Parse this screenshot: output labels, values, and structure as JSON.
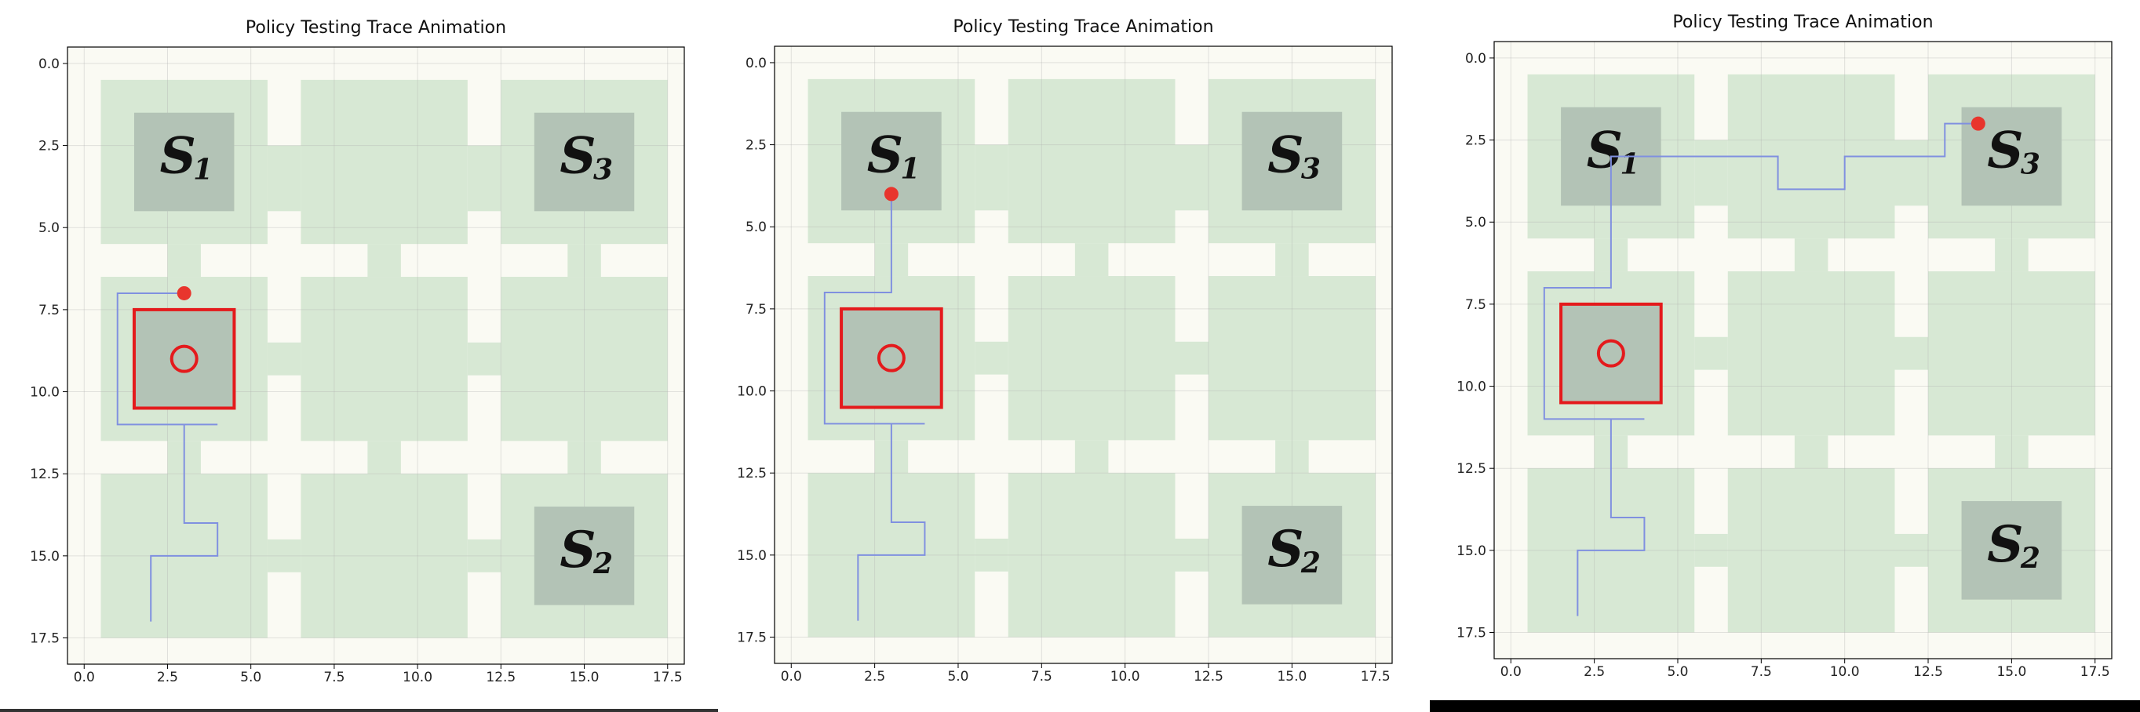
{
  "chart_data": [
    {
      "type": "line",
      "title": "Policy Testing Trace Animation",
      "xlabel": "",
      "ylabel": "",
      "xlim": [
        -0.5,
        18.0
      ],
      "ylim": [
        18.3,
        -0.5
      ],
      "y_inverted": true,
      "grid": true,
      "xticks": [
        0.0,
        2.5,
        5.0,
        7.5,
        10.0,
        12.5,
        15.0,
        17.5
      ],
      "yticks": [
        0.0,
        2.5,
        5.0,
        7.5,
        10.0,
        12.5,
        15.0,
        17.5
      ],
      "tick_labels": [
        "0.0",
        "2.5",
        "5.0",
        "7.5",
        "10.0",
        "12.5",
        "15.0",
        "17.5"
      ],
      "regions": [
        {
          "label": "S1",
          "x": [
            1.5,
            4.5
          ],
          "y": [
            1.5,
            4.5
          ]
        },
        {
          "label": "S3",
          "x": [
            13.5,
            16.5
          ],
          "y": [
            1.5,
            4.5
          ]
        },
        {
          "label": "S2",
          "x": [
            13.5,
            16.5
          ],
          "y": [
            13.5,
            16.5
          ]
        },
        {
          "label": "O",
          "x": [
            1.5,
            4.5
          ],
          "y": [
            7.5,
            10.5
          ],
          "highlighted": true
        }
      ],
      "series": [
        {
          "x": [
            2,
            2,
            4,
            4,
            3,
            3,
            4,
            1,
            1,
            3
          ],
          "y": [
            17,
            15,
            15,
            14,
            14,
            11,
            11,
            11,
            7,
            7
          ]
        }
      ],
      "agent_position": {
        "x": 3,
        "y": 7
      }
    },
    {
      "type": "line",
      "title": "Policy Testing Trace Animation",
      "xlabel": "",
      "ylabel": "",
      "xlim": [
        -0.5,
        18.0
      ],
      "ylim": [
        18.3,
        -0.5
      ],
      "y_inverted": true,
      "grid": true,
      "xticks": [
        0.0,
        2.5,
        5.0,
        7.5,
        10.0,
        12.5,
        15.0,
        17.5
      ],
      "yticks": [
        0.0,
        2.5,
        5.0,
        7.5,
        10.0,
        12.5,
        15.0,
        17.5
      ],
      "tick_labels": [
        "0.0",
        "2.5",
        "5.0",
        "7.5",
        "10.0",
        "12.5",
        "15.0",
        "17.5"
      ],
      "regions": [
        {
          "label": "S1",
          "x": [
            1.5,
            4.5
          ],
          "y": [
            1.5,
            4.5
          ]
        },
        {
          "label": "S3",
          "x": [
            13.5,
            16.5
          ],
          "y": [
            1.5,
            4.5
          ]
        },
        {
          "label": "S2",
          "x": [
            13.5,
            16.5
          ],
          "y": [
            13.5,
            16.5
          ]
        },
        {
          "label": "O",
          "x": [
            1.5,
            4.5
          ],
          "y": [
            7.5,
            10.5
          ],
          "highlighted": true
        }
      ],
      "series": [
        {
          "x": [
            2,
            2,
            4,
            4,
            3,
            3,
            4,
            1,
            1,
            3,
            3
          ],
          "y": [
            17,
            15,
            15,
            14,
            14,
            11,
            11,
            11,
            7,
            7,
            4
          ]
        }
      ],
      "agent_position": {
        "x": 3,
        "y": 4
      }
    },
    {
      "type": "line",
      "title": "Policy Testing Trace Animation",
      "xlabel": "",
      "ylabel": "",
      "xlim": [
        -0.5,
        18.0
      ],
      "ylim": [
        18.3,
        -0.5
      ],
      "y_inverted": true,
      "grid": true,
      "xticks": [
        0.0,
        2.5,
        5.0,
        7.5,
        10.0,
        12.5,
        15.0,
        17.5
      ],
      "yticks": [
        0.0,
        2.5,
        5.0,
        7.5,
        10.0,
        12.5,
        15.0,
        17.5
      ],
      "tick_labels": [
        "0.0",
        "2.5",
        "5.0",
        "7.5",
        "10.0",
        "12.5",
        "15.0",
        "17.5"
      ],
      "regions": [
        {
          "label": "S1",
          "x": [
            1.5,
            4.5
          ],
          "y": [
            1.5,
            4.5
          ]
        },
        {
          "label": "S3",
          "x": [
            13.5,
            16.5
          ],
          "y": [
            1.5,
            4.5
          ]
        },
        {
          "label": "S2",
          "x": [
            13.5,
            16.5
          ],
          "y": [
            13.5,
            16.5
          ]
        },
        {
          "label": "O",
          "x": [
            1.5,
            4.5
          ],
          "y": [
            7.5,
            10.5
          ],
          "highlighted": true
        }
      ],
      "series": [
        {
          "x": [
            2,
            2,
            4,
            4,
            3,
            3,
            4,
            1,
            1,
            3,
            3,
            8,
            8,
            10,
            10,
            13,
            13,
            14
          ],
          "y": [
            17,
            15,
            15,
            14,
            14,
            11,
            11,
            11,
            7,
            7,
            3,
            3,
            4,
            4,
            3,
            3,
            2,
            2
          ]
        }
      ],
      "agent_position": {
        "x": 14,
        "y": 2
      }
    }
  ],
  "colors": {
    "room": "#d7e8d4",
    "region": "#b3c3b6",
    "trace": "#8090e0",
    "agent": "#e8352d",
    "highlight": "#e41a1c",
    "background": "#fafaf3"
  }
}
